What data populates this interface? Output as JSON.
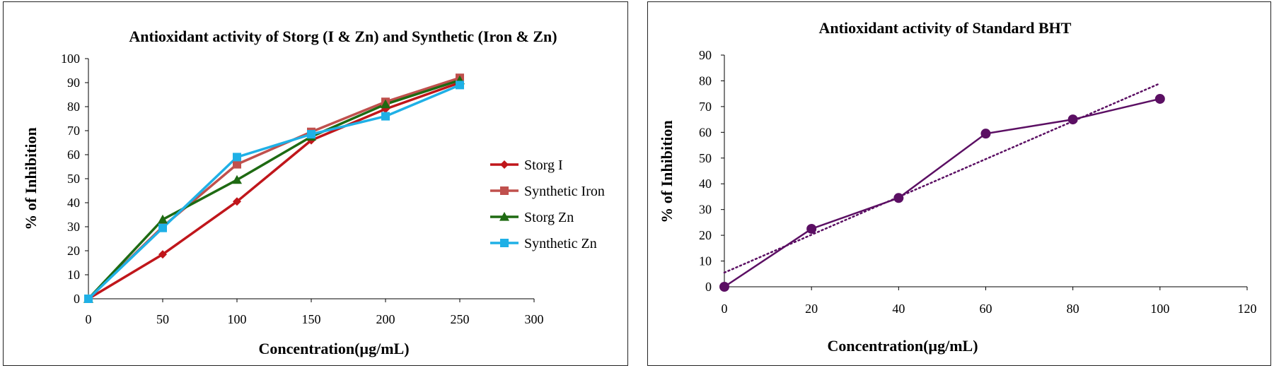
{
  "chart_data": [
    {
      "type": "line",
      "title": "Antioxidant activity of Storg (I & Zn) and Synthetic (Iron & Zn)",
      "xlabel": "Concentration(µg/mL)",
      "ylabel": "% of Inhibition",
      "x": [
        0,
        50,
        100,
        150,
        200,
        250
      ],
      "xlim": [
        0,
        300
      ],
      "ylim": [
        0,
        100
      ],
      "xticks": [
        0,
        50,
        100,
        150,
        200,
        250,
        300
      ],
      "yticks": [
        0,
        10,
        20,
        30,
        40,
        50,
        60,
        70,
        80,
        90,
        100
      ],
      "series": [
        {
          "name": "Storg I",
          "values": [
            0,
            18.5,
            40.5,
            66,
            79,
            90
          ],
          "color": "#c0161b",
          "marker": "diamond"
        },
        {
          "name": "Synthetic Iron",
          "values": [
            0,
            30,
            56,
            69.5,
            82,
            92
          ],
          "color": "#c0504d",
          "marker": "square"
        },
        {
          "name": "Storg Zn",
          "values": [
            0,
            33,
            49.5,
            67.5,
            81,
            91
          ],
          "color": "#1e6a12",
          "marker": "triangle"
        },
        {
          "name": "Synthetic Zn",
          "values": [
            0,
            29.5,
            59,
            68.5,
            76,
            89
          ],
          "color": "#1fb0e6",
          "marker": "square"
        }
      ],
      "legend": "right"
    },
    {
      "type": "scatter",
      "title": "Antioxidant activity of Standard BHT",
      "xlabel": "Concentration(µg/mL)",
      "ylabel": "% of Inhibition",
      "xlim": [
        0,
        120
      ],
      "ylim": [
        0,
        90
      ],
      "xticks": [
        0,
        20,
        40,
        60,
        80,
        100,
        120
      ],
      "yticks": [
        0,
        10,
        20,
        30,
        40,
        50,
        60,
        70,
        80,
        90
      ],
      "series": [
        {
          "name": "BHT",
          "x": [
            0,
            20,
            40,
            60,
            80,
            100
          ],
          "values": [
            0,
            22.5,
            34.5,
            59.5,
            65,
            73
          ],
          "color": "#5b0f63"
        }
      ],
      "trendline": {
        "type": "linear",
        "y_start": 5.5,
        "y_end": 79,
        "x_start": 0,
        "x_end": 100,
        "color": "#5b0f63"
      }
    }
  ]
}
